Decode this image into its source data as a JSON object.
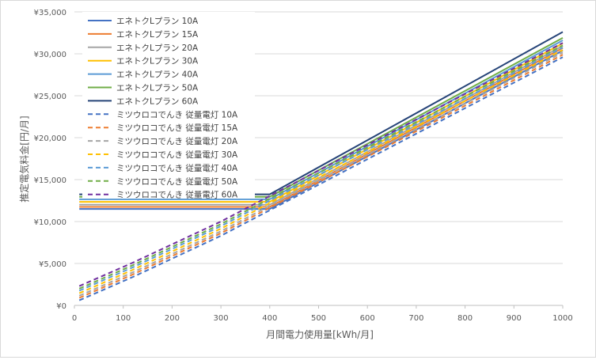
{
  "chart_data": {
    "type": "line",
    "xlabel": "月間電力使用量[kWh/月]",
    "ylabel": "推定電気料金[円/月]",
    "xlim": [
      0,
      1000
    ],
    "ylim": [
      0,
      35000
    ],
    "x_ticks": [
      0,
      100,
      200,
      300,
      400,
      500,
      600,
      700,
      800,
      900,
      1000
    ],
    "x_tick_labels": [
      "0",
      "100",
      "200",
      "300",
      "400",
      "500",
      "600",
      "700",
      "800",
      "900",
      "1000"
    ],
    "y_ticks": [
      0,
      5000,
      10000,
      15000,
      20000,
      25000,
      30000,
      35000
    ],
    "y_tick_labels": [
      "¥0",
      "¥5,000",
      "¥10,000",
      "¥15,000",
      "¥20,000",
      "¥25,000",
      "¥30,000",
      "¥35,000"
    ],
    "grid": "horizontal",
    "legend_position": "top-left",
    "series": [
      {
        "name": "エネトクLプラン 10A",
        "color": "#4472c4",
        "dash": false,
        "x": [
          10,
          400,
          1000
        ],
        "y": [
          11500,
          11500,
          30400
        ]
      },
      {
        "name": "エネトクLプラン 15A",
        "color": "#ed7d31",
        "dash": false,
        "x": [
          10,
          400,
          1000
        ],
        "y": [
          11750,
          11750,
          30700
        ]
      },
      {
        "name": "エネトクLプラン 20A",
        "color": "#a5a5a5",
        "dash": false,
        "x": [
          10,
          400,
          1000
        ],
        "y": [
          12000,
          12000,
          30950
        ]
      },
      {
        "name": "エネトクLプラン 30A",
        "color": "#ffc000",
        "dash": false,
        "x": [
          10,
          400,
          1000
        ],
        "y": [
          12350,
          12350,
          31250
        ]
      },
      {
        "name": "エネトクLプラン 40A",
        "color": "#5b9bd5",
        "dash": false,
        "x": [
          10,
          400,
          1000
        ],
        "y": [
          12650,
          12650,
          31600
        ]
      },
      {
        "name": "エネトクLプラン 50A",
        "color": "#70ad47",
        "dash": false,
        "x": [
          10,
          400,
          1000
        ],
        "y": [
          12950,
          12950,
          31900
        ]
      },
      {
        "name": "エネトクLプラン 60A",
        "color": "#264478",
        "dash": false,
        "x": [
          10,
          400,
          1000
        ],
        "y": [
          13250,
          13250,
          32600
        ]
      },
      {
        "name": "ミツウロコでんき 従量電灯 10A",
        "color": "#4472c4",
        "dash": true,
        "x": [
          10,
          120,
          300,
          1000
        ],
        "y": [
          600,
          3400,
          8300,
          29600
        ]
      },
      {
        "name": "ミツウロコでんき 従量電灯 15A",
        "color": "#ed7d31",
        "dash": true,
        "x": [
          10,
          120,
          300,
          1000
        ],
        "y": [
          900,
          3700,
          8600,
          29900
        ]
      },
      {
        "name": "ミツウロコでんき 従量電灯 20A",
        "color": "#a5a5a5",
        "dash": true,
        "x": [
          10,
          120,
          300,
          1000
        ],
        "y": [
          1150,
          3950,
          8850,
          30150
        ]
      },
      {
        "name": "ミツウロコでんき 従量電灯 30A",
        "color": "#ffc000",
        "dash": true,
        "x": [
          10,
          120,
          300,
          1000
        ],
        "y": [
          1450,
          4250,
          9150,
          30450
        ]
      },
      {
        "name": "ミツウロコでんき 従量電灯 40A",
        "color": "#5b9bd5",
        "dash": true,
        "x": [
          10,
          120,
          300,
          1000
        ],
        "y": [
          1750,
          4550,
          9450,
          30750
        ]
      },
      {
        "name": "ミツウロコでんき 従量電灯 50A",
        "color": "#70ad47",
        "dash": true,
        "x": [
          10,
          120,
          300,
          1000
        ],
        "y": [
          2000,
          4800,
          9700,
          31000
        ]
      },
      {
        "name": "ミツウロコでんき 従量電灯 60A",
        "color": "#7030a0",
        "dash": true,
        "x": [
          10,
          120,
          300,
          1000
        ],
        "y": [
          2300,
          5100,
          10000,
          31300
        ]
      }
    ]
  }
}
